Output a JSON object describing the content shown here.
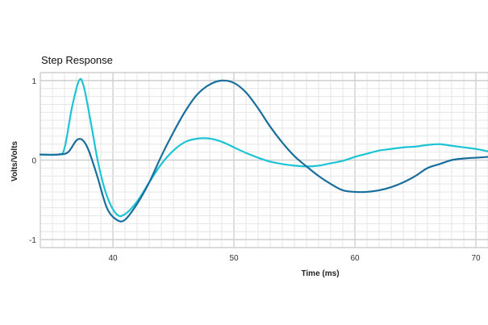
{
  "chart_data": {
    "type": "line",
    "title": "Step Response",
    "xlabel": "Time (ms)",
    "ylabel": "Volts/Volts",
    "xlim": [
      34,
      71
    ],
    "ylim": [
      -1.1,
      1.1
    ],
    "x_ticks": [
      40,
      50,
      60,
      70
    ],
    "y_ticks": [
      -1,
      0,
      1
    ],
    "grid": true,
    "series": [
      {
        "color": "#1a6e9c",
        "points": [
          [
            34.0,
            0.07
          ],
          [
            35.5,
            0.07
          ],
          [
            36.3,
            0.1
          ],
          [
            37.0,
            0.25
          ],
          [
            37.5,
            0.25
          ],
          [
            38.0,
            0.12
          ],
          [
            38.7,
            -0.2
          ],
          [
            39.5,
            -0.6
          ],
          [
            40.3,
            -0.75
          ],
          [
            41.0,
            -0.75
          ],
          [
            42.0,
            -0.55
          ],
          [
            43.0,
            -0.28
          ],
          [
            44.0,
            0.05
          ],
          [
            45.0,
            0.35
          ],
          [
            46.0,
            0.62
          ],
          [
            47.0,
            0.83
          ],
          [
            48.0,
            0.95
          ],
          [
            49.0,
            1.0
          ],
          [
            50.0,
            0.97
          ],
          [
            51.0,
            0.85
          ],
          [
            52.0,
            0.65
          ],
          [
            53.0,
            0.42
          ],
          [
            54.0,
            0.22
          ],
          [
            55.0,
            0.05
          ],
          [
            56.0,
            -0.08
          ],
          [
            57.0,
            -0.2
          ],
          [
            58.0,
            -0.3
          ],
          [
            59.0,
            -0.38
          ],
          [
            60.0,
            -0.4
          ],
          [
            61.0,
            -0.4
          ],
          [
            62.0,
            -0.38
          ],
          [
            63.0,
            -0.34
          ],
          [
            64.0,
            -0.28
          ],
          [
            65.0,
            -0.2
          ],
          [
            66.0,
            -0.1
          ],
          [
            67.0,
            -0.05
          ],
          [
            68.0,
            0.0
          ],
          [
            69.0,
            0.02
          ],
          [
            70.0,
            0.03
          ],
          [
            71.0,
            0.04
          ]
        ]
      },
      {
        "color": "#1cc4d6",
        "points": [
          [
            34.0,
            0.07
          ],
          [
            35.5,
            0.07
          ],
          [
            36.0,
            0.15
          ],
          [
            36.6,
            0.65
          ],
          [
            37.2,
            1.0
          ],
          [
            37.6,
            0.92
          ],
          [
            38.2,
            0.45
          ],
          [
            38.8,
            -0.05
          ],
          [
            39.5,
            -0.45
          ],
          [
            40.3,
            -0.68
          ],
          [
            41.0,
            -0.68
          ],
          [
            42.0,
            -0.52
          ],
          [
            43.0,
            -0.28
          ],
          [
            44.0,
            -0.05
          ],
          [
            45.0,
            0.12
          ],
          [
            46.0,
            0.23
          ],
          [
            47.0,
            0.27
          ],
          [
            48.0,
            0.27
          ],
          [
            49.0,
            0.23
          ],
          [
            50.0,
            0.16
          ],
          [
            51.0,
            0.09
          ],
          [
            52.0,
            0.03
          ],
          [
            53.0,
            -0.02
          ],
          [
            54.0,
            -0.05
          ],
          [
            55.0,
            -0.07
          ],
          [
            56.0,
            -0.08
          ],
          [
            57.0,
            -0.07
          ],
          [
            58.0,
            -0.04
          ],
          [
            59.0,
            -0.01
          ],
          [
            60.0,
            0.04
          ],
          [
            61.0,
            0.08
          ],
          [
            62.0,
            0.12
          ],
          [
            63.0,
            0.14
          ],
          [
            64.0,
            0.16
          ],
          [
            65.0,
            0.17
          ],
          [
            66.0,
            0.19
          ],
          [
            67.0,
            0.2
          ],
          [
            68.0,
            0.18
          ],
          [
            69.0,
            0.16
          ],
          [
            70.0,
            0.14
          ],
          [
            71.0,
            0.11
          ]
        ]
      }
    ]
  }
}
